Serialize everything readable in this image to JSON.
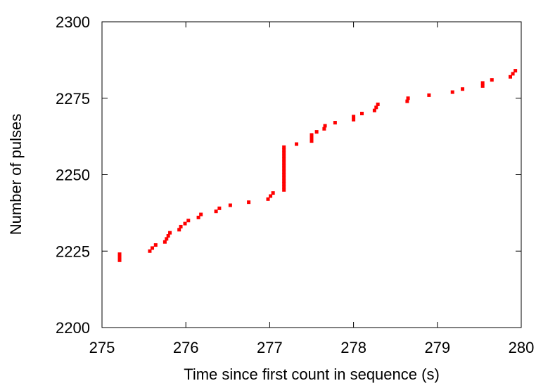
{
  "chart_data": {
    "type": "scatter",
    "x_label": "Time since first count in sequence (s)",
    "y_label": "Number of pulses",
    "color": "#ff0000",
    "x": [
      275.21,
      275.21,
      275.21,
      275.57,
      275.6,
      275.64,
      275.75,
      275.77,
      275.79,
      275.81,
      275.92,
      275.94,
      275.99,
      276.03,
      276.15,
      276.18,
      276.36,
      276.4,
      276.53,
      276.75,
      276.98,
      277.01,
      277.04,
      277.17,
      277.17,
      277.17,
      277.17,
      277.17,
      277.17,
      277.17,
      277.17,
      277.17,
      277.17,
      277.17,
      277.17,
      277.17,
      277.17,
      277.17,
      277.32,
      277.5,
      277.5,
      277.5,
      277.56,
      277.65,
      277.66,
      277.78,
      278.0,
      278.0,
      278.1,
      278.25,
      278.27,
      278.29,
      278.64,
      278.65,
      278.9,
      279.18,
      279.3,
      279.54,
      279.54,
      279.65,
      279.87,
      279.9,
      279.93
    ],
    "y": [
      2222,
      2223,
      2224,
      2225,
      2226,
      2227,
      2228,
      2229,
      2230,
      2231,
      2232,
      2233,
      2234,
      2235,
      2236,
      2237,
      2238,
      2239,
      2240,
      2241,
      2242,
      2243,
      2244,
      2245,
      2246,
      2247,
      2248,
      2249,
      2250,
      2251,
      2252,
      2253,
      2254,
      2255,
      2256,
      2257,
      2258,
      2259,
      2260,
      2261,
      2262,
      2263,
      2264,
      2265,
      2266,
      2267,
      2268,
      2269,
      2270,
      2271,
      2272,
      2273,
      2274,
      2275,
      2276,
      2277,
      2278,
      2279,
      2280,
      2281,
      2282,
      2283,
      2284
    ],
    "xlim": [
      275,
      280
    ],
    "xticks": [
      275,
      276,
      277,
      278,
      279,
      280
    ],
    "ylim": [
      2200,
      2300
    ],
    "yticks": [
      2200,
      2225,
      2250,
      2275,
      2300
    ]
  }
}
